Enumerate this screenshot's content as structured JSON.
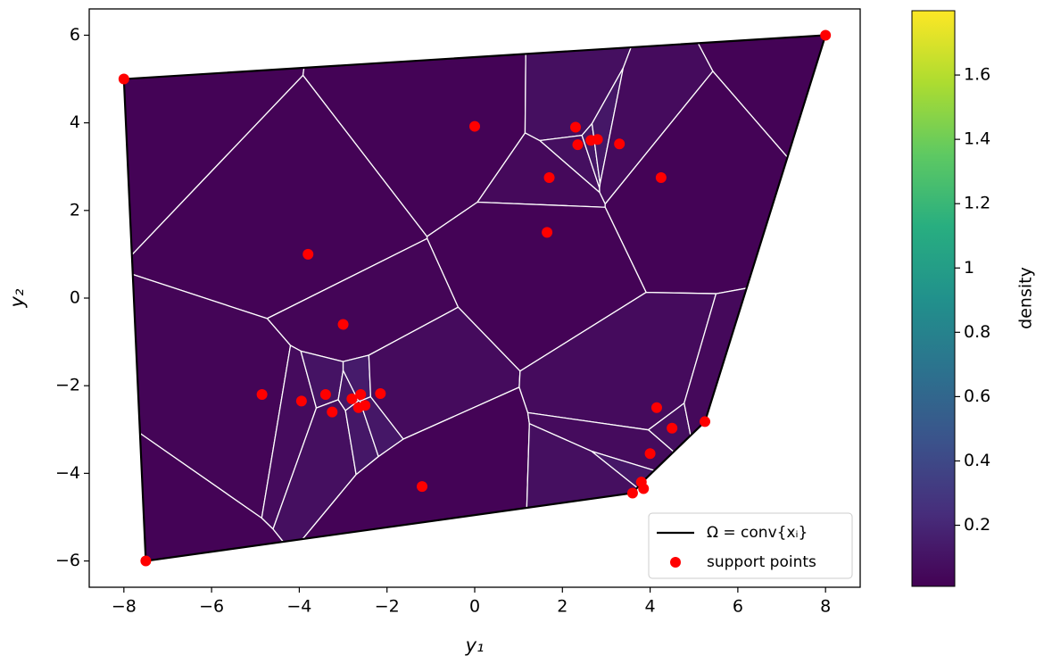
{
  "chart_data": {
    "type": "scatter",
    "xlabel": "y₁",
    "ylabel": "y₂",
    "xlim": [
      -8.79,
      8.79
    ],
    "ylim": [
      -6.6,
      6.6
    ],
    "xticks": [
      {
        "value": -8,
        "label": "−8"
      },
      {
        "value": -6,
        "label": "−6"
      },
      {
        "value": -4,
        "label": "−4"
      },
      {
        "value": -2,
        "label": "−2"
      },
      0,
      2,
      4,
      6,
      8
    ],
    "yticks": [
      {
        "value": -6,
        "label": "−6"
      },
      {
        "value": -4,
        "label": "−4"
      },
      {
        "value": -2,
        "label": "−2"
      },
      0,
      2,
      4,
      6
    ],
    "hull": {
      "name": "Ω = conv{xᵢ}",
      "color": "#000000",
      "x": [
        -8,
        8,
        5.25,
        3.82,
        3.6,
        -7.5
      ],
      "y": [
        5,
        6,
        -2.82,
        -4.2,
        -4.45,
        -6
      ]
    },
    "series": [
      {
        "name": "support points",
        "color": "#ff0000",
        "x": [
          -8,
          8,
          -7.5,
          0,
          2.3,
          2.35,
          2.65,
          2.8,
          3.3,
          1.7,
          4.25,
          1.65,
          -3.8,
          -3.0,
          -4.85,
          -3.95,
          -3.4,
          -3.25,
          -2.8,
          -2.6,
          -2.65,
          -2.5,
          -2.15,
          -1.2,
          4.15,
          4.5,
          5.25,
          4.0,
          3.8,
          3.85,
          3.6
        ],
        "y": [
          5,
          6,
          -6,
          3.92,
          3.9,
          3.5,
          3.6,
          3.62,
          3.52,
          2.75,
          2.75,
          1.5,
          1.0,
          -0.6,
          -2.2,
          -2.35,
          -2.2,
          -2.6,
          -2.3,
          -2.2,
          -2.5,
          -2.45,
          -2.18,
          -4.3,
          -2.5,
          -2.97,
          -2.82,
          -3.55,
          -4.2,
          -4.35,
          -4.45
        ],
        "density": [
          0.02,
          0.02,
          0.02,
          0.02,
          0.08,
          0.08,
          0.12,
          0.12,
          0.06,
          0.05,
          0.02,
          0.02,
          0.02,
          0.03,
          0.03,
          0.06,
          0.1,
          0.08,
          0.12,
          0.14,
          0.12,
          0.12,
          0.06,
          0.02,
          0.06,
          0.08,
          0.05,
          0.06,
          0.12,
          0.12,
          0.08
        ]
      }
    ],
    "colorbar": {
      "label": "density",
      "colormap": "viridis",
      "lim": [
        0.01,
        1.8
      ],
      "ticks": [
        0.2,
        0.4,
        0.6,
        0.8,
        1.0,
        1.2,
        1.4,
        1.6
      ]
    },
    "legend": "lower right"
  }
}
